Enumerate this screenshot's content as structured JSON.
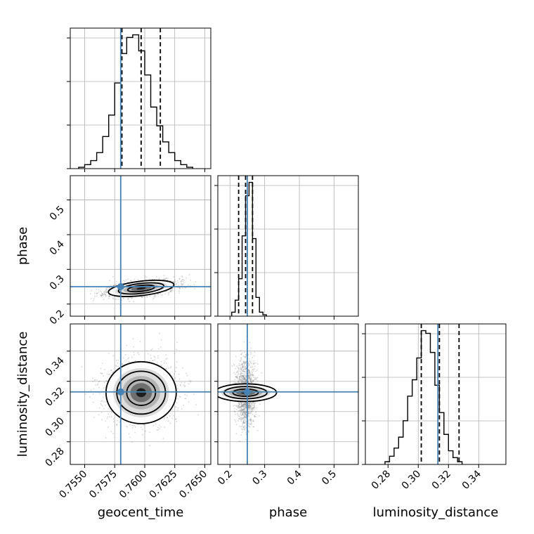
{
  "chart_data": {
    "type": "corner",
    "parameters": [
      {
        "name": "geocent_time",
        "range": [
          0.7538,
          0.7655
        ],
        "ticks": [
          0.755,
          0.7575,
          0.76,
          0.7625,
          0.765
        ],
        "tick_labels": [
          "0.7550",
          "0.7575",
          "0.7600",
          "0.7625",
          "0.7650"
        ],
        "truth": 0.758,
        "quantiles": [
          0.7581,
          0.7597,
          0.7613
        ]
      },
      {
        "name": "phase",
        "range": [
          0.165,
          0.57
        ],
        "ticks": [
          0.2,
          0.3,
          0.4,
          0.5
        ],
        "tick_labels": [
          "0.2",
          "0.3",
          "0.4",
          "0.5"
        ],
        "truth": 0.25,
        "quantiles": [
          0.225,
          0.245,
          0.265
        ]
      },
      {
        "name": "luminosity_distance",
        "range": [
          0.265,
          0.358
        ],
        "ticks": [
          0.28,
          0.3,
          0.32,
          0.34
        ],
        "tick_labels": [
          "0.28",
          "0.30",
          "0.32",
          "0.34"
        ],
        "truth": 0.313,
        "quantiles": [
          0.302,
          0.314,
          0.327
        ]
      }
    ],
    "histograms": [
      {
        "parameter": "geocent_time",
        "bin_width": 0.0005,
        "bin_start": 0.7545,
        "counts": [
          1,
          3,
          6,
          12,
          24,
          40,
          64,
          86,
          98,
          100,
          88,
          70,
          46,
          32,
          20,
          12,
          6,
          3,
          1
        ]
      },
      {
        "parameter": "phase",
        "bin_width": 0.01,
        "bin_start": 0.205,
        "counts": [
          3,
          12,
          28,
          60,
          90,
          100,
          58,
          14,
          3,
          1
        ]
      },
      {
        "parameter": "luminosity_distance",
        "bin_width": 0.003,
        "bin_start": 0.278,
        "counts": [
          2,
          6,
          12,
          20,
          32,
          50,
          62,
          78,
          98,
          96,
          82,
          58,
          38,
          22,
          10,
          5,
          2
        ]
      }
    ],
    "pairs": [
      {
        "x": "geocent_time",
        "y": "phase",
        "center": [
          0.7597,
          0.245
        ],
        "spread": [
          0.0014,
          0.012
        ],
        "rho": 0.45
      },
      {
        "x": "geocent_time",
        "y": "luminosity_distance",
        "center": [
          0.7597,
          0.3125
        ],
        "spread": [
          0.0015,
          0.0105
        ],
        "rho": 0.0
      },
      {
        "x": "phase",
        "y": "luminosity_distance",
        "center": [
          0.245,
          0.3125
        ],
        "spread": [
          0.013,
          0.0105
        ],
        "rho": 0.0
      }
    ],
    "colors": {
      "truth": "#4682b4",
      "lines": "#000000",
      "grid": "#b0b0b0",
      "scatter": "#8a8a8a"
    }
  }
}
